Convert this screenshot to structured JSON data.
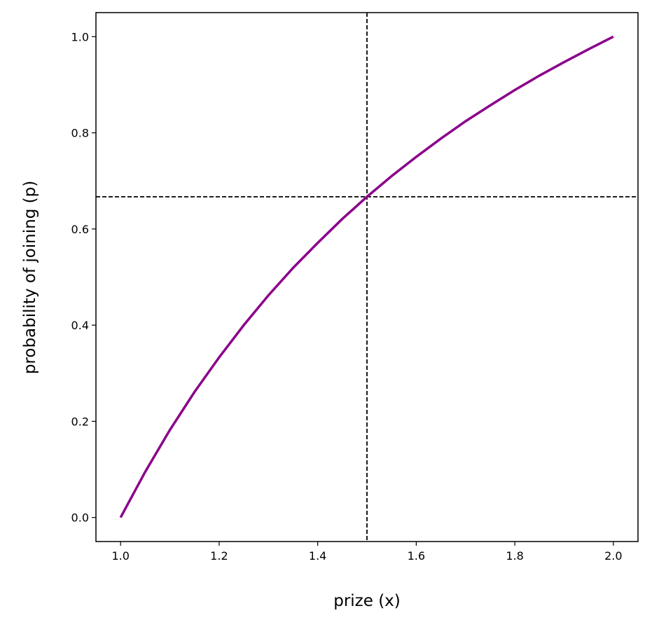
{
  "chart_data": {
    "type": "line",
    "xlabel": "prize (x)",
    "ylabel": "probability of joining (p)",
    "x": [
      1.0,
      1.05,
      1.1,
      1.15,
      1.2,
      1.25,
      1.3,
      1.35,
      1.4,
      1.45,
      1.5,
      1.55,
      1.6,
      1.65,
      1.7,
      1.75,
      1.8,
      1.85,
      1.9,
      1.95,
      2.0
    ],
    "series": [
      {
        "color": "#8b008b",
        "values": [
          0,
          0.095,
          0.182,
          0.261,
          0.333,
          0.4,
          0.462,
          0.519,
          0.571,
          0.621,
          0.667,
          0.71,
          0.75,
          0.788,
          0.824,
          0.857,
          0.889,
          0.919,
          0.947,
          0.974,
          1.0
        ]
      }
    ],
    "vlines": [
      1.5
    ],
    "hlines": [
      0.667
    ],
    "xlim": [
      0.95,
      2.05
    ],
    "ylim": [
      -0.05,
      1.05
    ],
    "xticks": [
      {
        "value": 1,
        "label": "1.0"
      },
      1.2,
      1.4,
      1.6,
      1.8,
      {
        "value": 2,
        "label": "2.0"
      }
    ],
    "yticks": [
      {
        "value": 0,
        "label": "0.0"
      },
      0.2,
      0.4,
      0.6,
      0.8,
      {
        "value": 1,
        "label": "1.0"
      }
    ]
  }
}
